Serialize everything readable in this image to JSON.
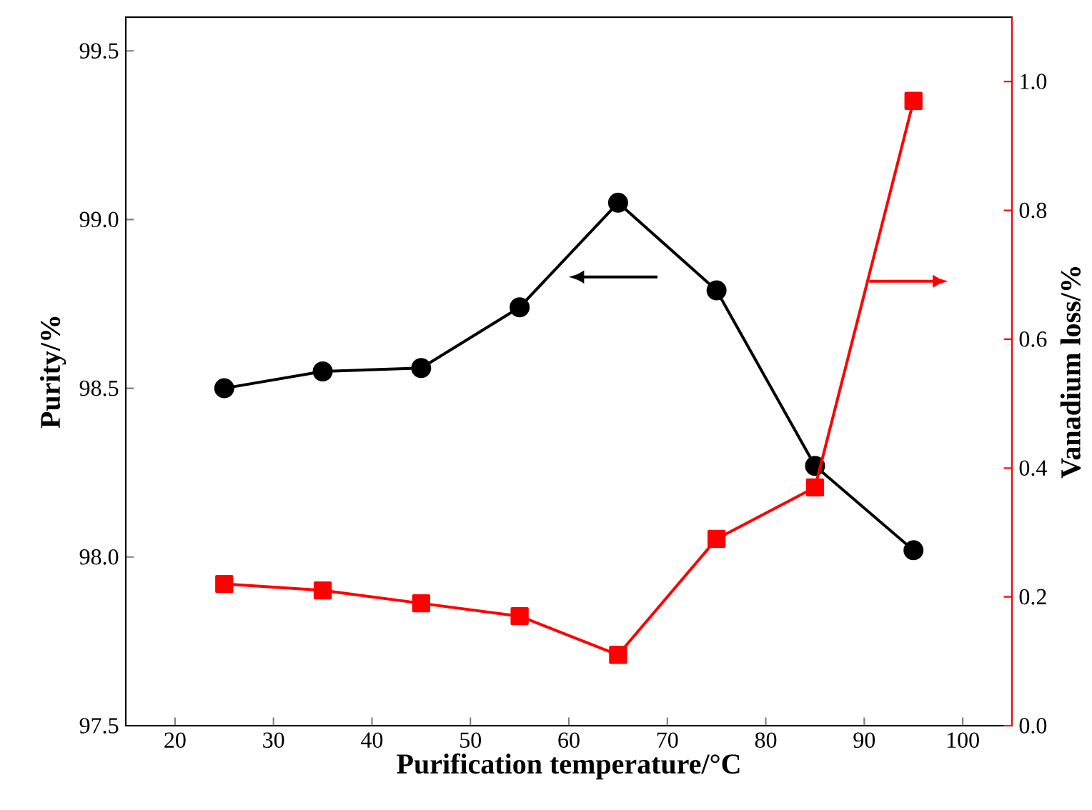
{
  "chart_data": {
    "type": "line",
    "xlabel": "Purification temperature/°C",
    "ylabel": "Purity/%",
    "y2label": "Vanadium loss/%",
    "x": [
      25,
      35,
      45,
      55,
      65,
      75,
      85,
      95
    ],
    "series": [
      {
        "color": "#000000",
        "marker": "circle",
        "values": [
          98.5,
          98.55,
          98.56,
          98.74,
          99.05,
          98.79,
          98.27,
          98.02
        ]
      },
      {
        "color": "#ff0000",
        "marker": "square",
        "axis": "y2",
        "values": [
          0.22,
          0.21,
          0.19,
          0.17,
          0.11,
          0.29,
          0.37,
          0.97
        ]
      }
    ],
    "xlim": [
      15,
      105
    ],
    "xticks": [
      20,
      30,
      40,
      50,
      60,
      70,
      80,
      90,
      100
    ],
    "ylim": [
      97.5,
      99.6
    ],
    "yticks": [
      97.5,
      {
        "value": 98,
        "label": "98.0"
      },
      98.5,
      {
        "value": 99,
        "label": "99.0"
      },
      99.5
    ],
    "y2lim": [
      0,
      1.1
    ],
    "y2ticks": [
      {
        "value": 0,
        "label": "0.0"
      },
      0.2,
      0.4,
      0.6,
      0.8,
      {
        "value": 1,
        "label": "1.0"
      }
    ],
    "line_style": "solid"
  }
}
